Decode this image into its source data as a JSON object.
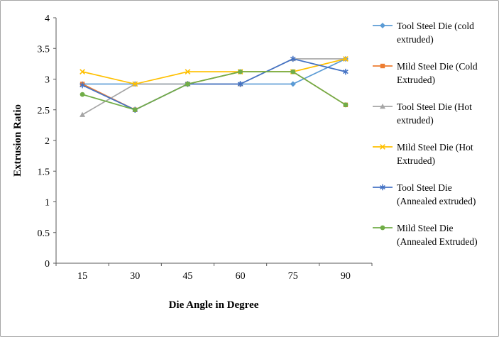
{
  "chart_data": {
    "type": "line",
    "title": "",
    "xlabel": "Die Angle in Degree",
    "ylabel": "Extrusion Ratio",
    "categories": [
      "15",
      "30",
      "45",
      "60",
      "75",
      "90"
    ],
    "ylim": [
      0,
      4
    ],
    "ytick_step": 0.5,
    "grid": false,
    "legend_position": "right",
    "axis_color": "#595959",
    "series": [
      {
        "name": "Tool Steel Die (cold extruded)",
        "label_lines": [
          "Tool Steel Die (cold",
          "extruded)"
        ],
        "color": "#5B9BD5",
        "marker": "diamond",
        "values": [
          2.92,
          2.92,
          2.92,
          2.92,
          2.92,
          3.33
        ]
      },
      {
        "name": "Mild Steel Die (Cold Extruded)",
        "label_lines": [
          "Mild Steel Die (Cold",
          "Extruded)"
        ],
        "color": "#ED7D31",
        "marker": "square",
        "values": [
          2.92,
          2.5,
          2.92,
          3.12,
          3.12,
          2.58
        ]
      },
      {
        "name": "Tool Steel Die (Hot extruded)",
        "label_lines": [
          "Tool Steel Die (Hot",
          "extruded)"
        ],
        "color": "#A5A5A5",
        "marker": "triangle",
        "values": [
          2.42,
          2.92,
          2.92,
          2.92,
          3.33,
          3.33
        ]
      },
      {
        "name": "Mild Steel Die (Hot Extruded)",
        "label_lines": [
          "Mild Steel Die (Hot",
          "Extruded)"
        ],
        "color": "#FFC000",
        "marker": "x",
        "values": [
          3.12,
          2.92,
          3.12,
          3.12,
          3.12,
          3.33
        ]
      },
      {
        "name": "Tool Steel Die (Annealed extruded)",
        "label_lines": [
          "Tool Steel Die",
          "(Annealed extruded)"
        ],
        "color": "#4472C4",
        "marker": "asterisk",
        "values": [
          2.9,
          2.5,
          2.92,
          2.92,
          3.33,
          3.12
        ]
      },
      {
        "name": "Mild Steel Die (Annealed Extruded)",
        "label_lines": [
          "Mild Steel Die",
          "(Annealed Extruded)"
        ],
        "color": "#70AD47",
        "marker": "circle",
        "values": [
          2.75,
          2.5,
          2.92,
          3.12,
          3.12,
          2.58
        ]
      }
    ]
  }
}
